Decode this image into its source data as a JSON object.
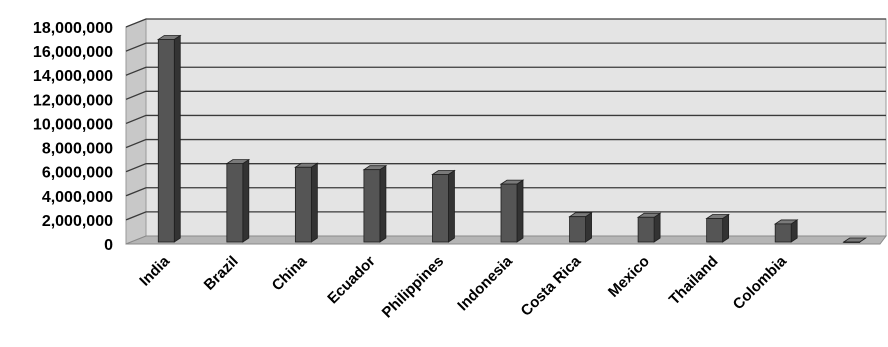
{
  "chart_data": {
    "type": "bar",
    "title": "",
    "xlabel": "",
    "ylabel": "",
    "categories": [
      "India",
      "Brazil",
      "China",
      "Ecuador",
      "Philippines",
      "Indonesia",
      "Costa Rica",
      "Mexico",
      "Thailand",
      "Colombia",
      ""
    ],
    "values": [
      16800000,
      6500000,
      6200000,
      6000000,
      5600000,
      4800000,
      2100000,
      2050000,
      1950000,
      1500000,
      0
    ],
    "ylim": [
      0,
      18000000
    ],
    "yticks": [
      0,
      2000000,
      4000000,
      6000000,
      8000000,
      10000000,
      12000000,
      14000000,
      16000000,
      18000000
    ],
    "ytick_labels": [
      "0",
      "2,000,000",
      "4,000,000",
      "6,000,000",
      "8,000,000",
      "10,000,000",
      "12,000,000",
      "14,000,000",
      "16,000,000",
      "18,000,000"
    ],
    "grid": true,
    "legend": "none",
    "colors": {
      "bar_front": "#555555",
      "bar_side": "#333333",
      "bar_top": "#7a7a7a",
      "back_wall": "#e4e4e4",
      "left_wall": "#c8c8c8",
      "floor": "#b5b5b5",
      "gridline": "#3a3a3a"
    }
  }
}
